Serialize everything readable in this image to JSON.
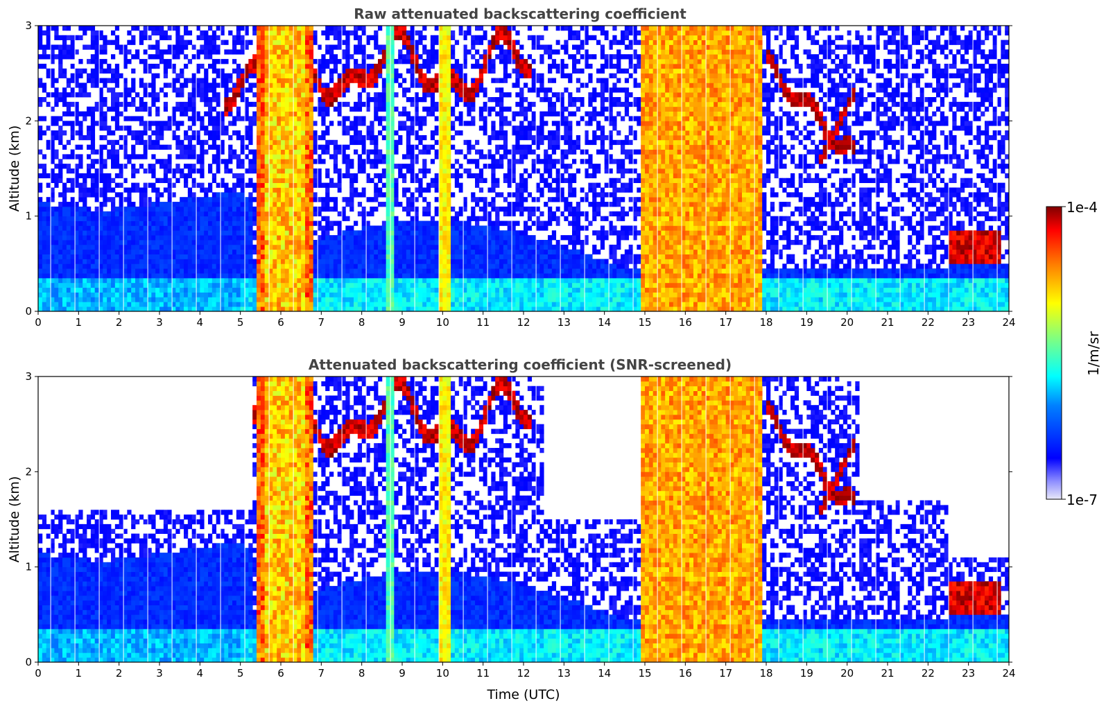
{
  "chart_data": [
    {
      "type": "heatmap",
      "title": "Raw attenuated backscattering coefficient",
      "xlabel": "",
      "ylabel": "Altitude (km)",
      "xlim": [
        0,
        24
      ],
      "ylim": [
        0,
        3
      ],
      "xticks": [
        "0",
        "1",
        "2",
        "3",
        "4",
        "5",
        "6",
        "7",
        "8",
        "9",
        "10",
        "11",
        "12",
        "13",
        "14",
        "15",
        "16",
        "17",
        "18",
        "19",
        "20",
        "21",
        "22",
        "23",
        "24"
      ],
      "yticks": [
        "0",
        "1",
        "2",
        "3"
      ],
      "colormap": "jet",
      "grid": false,
      "features": [
        {
          "kind": "boundary_layer",
          "x": [
            0,
            5.3
          ],
          "top_km": 1.2,
          "level": 0.15
        },
        {
          "kind": "aerosol_low",
          "x": [
            5.3,
            24
          ],
          "top_km": 0.4,
          "level": 0.35
        },
        {
          "kind": "precipitation",
          "x": [
            5.4,
            6.8
          ],
          "y": [
            0,
            3
          ],
          "level": 0.72
        },
        {
          "kind": "precipitation",
          "x": [
            14.9,
            17.9
          ],
          "y": [
            0,
            3
          ],
          "level": 0.7
        },
        {
          "kind": "cloud_layer",
          "x": [
            4.5,
            12.2
          ],
          "y": [
            2.2,
            3.0
          ],
          "level": 0.95
        },
        {
          "kind": "cloud_layer",
          "x": [
            18.0,
            20.2
          ],
          "y": [
            1.5,
            2.7
          ],
          "level": 0.95
        },
        {
          "kind": "low_cloud",
          "x": [
            22.5,
            23.8
          ],
          "y": [
            0.5,
            0.9
          ],
          "level": 0.97
        }
      ]
    },
    {
      "type": "heatmap",
      "title": "Attenuated backscattering coefficient (SNR-screened)",
      "xlabel": "Time (UTC)",
      "ylabel": "Altitude (km)",
      "xlim": [
        0,
        24
      ],
      "ylim": [
        0,
        3
      ],
      "xticks": [
        "0",
        "1",
        "2",
        "3",
        "4",
        "5",
        "6",
        "7",
        "8",
        "9",
        "10",
        "11",
        "12",
        "13",
        "14",
        "15",
        "16",
        "17",
        "18",
        "19",
        "20",
        "21",
        "22",
        "23",
        "24"
      ],
      "yticks": [
        "0",
        "1",
        "2",
        "3"
      ],
      "colormap": "jet",
      "grid": false,
      "screened_regions": [
        {
          "x": [
            0,
            5.3
          ],
          "y": [
            1.6,
            3.0
          ]
        },
        {
          "x": [
            12.5,
            14.9
          ],
          "y": [
            1.5,
            3.0
          ]
        },
        {
          "x": [
            20.3,
            22.5
          ],
          "y": [
            1.7,
            3.0
          ]
        },
        {
          "x": [
            22.5,
            24
          ],
          "y": [
            1.1,
            3.0
          ]
        }
      ]
    }
  ],
  "colorbar": {
    "label": "1/m/sr",
    "max_label": "1e-4",
    "min_label": "1e-7",
    "range": [
      1e-07,
      0.0001
    ],
    "scale": "log",
    "colors": [
      "#e6e6f5",
      "#0000ff",
      "#00ffff",
      "#ffff00",
      "#ff0000",
      "#800000"
    ]
  }
}
